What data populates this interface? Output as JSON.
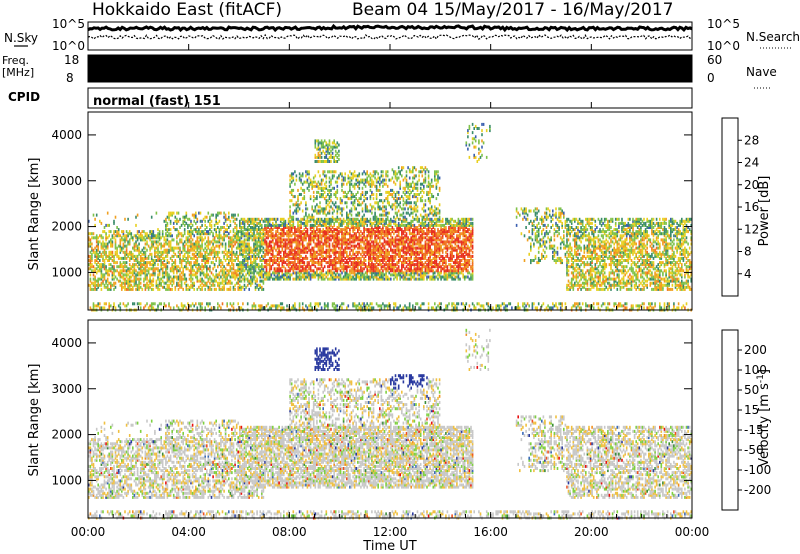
{
  "header": {
    "radar": "Hokkaido East (fitACF)",
    "beam_and_dates": "Beam 04 15/May/2017 - 16/May/2017"
  },
  "noise_panel": {
    "left_label": "N.Sky",
    "right_label": "N.Search",
    "tick_top": "10^5",
    "tick_bottom": "10^0",
    "right_tick_top": "10^5",
    "right_tick_bottom": "10^0"
  },
  "freq_panel": {
    "left_label_line1": "Freq.",
    "left_label_line2": "[MHz]",
    "left_tick_top": "18",
    "left_tick_bottom": "8",
    "right_tick_top": "60",
    "right_tick_bottom": "0",
    "right_label": "Nave"
  },
  "cpid_panel": {
    "left_label": "CPID",
    "program": "normal (fast) 151"
  },
  "x_axis": {
    "title": "Time UT",
    "ticks": [
      "00:00",
      "04:00",
      "08:00",
      "12:00",
      "16:00",
      "20:00",
      "00:00"
    ]
  },
  "chart_data": [
    {
      "type": "heatmap",
      "name": "power",
      "xlabel": "Time UT",
      "ylabel": "Slant Range [km]",
      "x_ticks": [
        "00:00",
        "04:00",
        "08:00",
        "12:00",
        "16:00",
        "20:00",
        "00:00"
      ],
      "y_ticks": [
        "1000",
        "2000",
        "3000",
        "4000"
      ],
      "colorbar": {
        "label": "Power [dB]",
        "ticks": [
          "4",
          "8",
          "12",
          "16",
          "20",
          "24",
          "28"
        ],
        "colors": [
          "#1a1aff",
          "#3a5fb0",
          "#3a8c6a",
          "#7fc24a",
          "#e8d020",
          "#f0a020",
          "#f07020",
          "#e83020"
        ]
      }
    },
    {
      "type": "heatmap",
      "name": "velocity",
      "xlabel": "Time UT",
      "ylabel": "Slant Range [km]",
      "x_ticks": [
        "00:00",
        "04:00",
        "08:00",
        "12:00",
        "16:00",
        "20:00",
        "00:00"
      ],
      "y_ticks": [
        "1000",
        "2000",
        "3000",
        "4000"
      ],
      "colorbar": {
        "label": "Velocity [m s-1]",
        "ticks": [
          "200",
          "100",
          "50",
          "15",
          "-15",
          "-50",
          "-100",
          "-200"
        ],
        "colors": [
          "#2a3aa0",
          "#3a6ab8",
          "#3a8c3a",
          "#7fd040",
          "#c8c8c8",
          "#f0c040",
          "#f09020",
          "#f05020",
          "#e81010"
        ]
      }
    }
  ]
}
